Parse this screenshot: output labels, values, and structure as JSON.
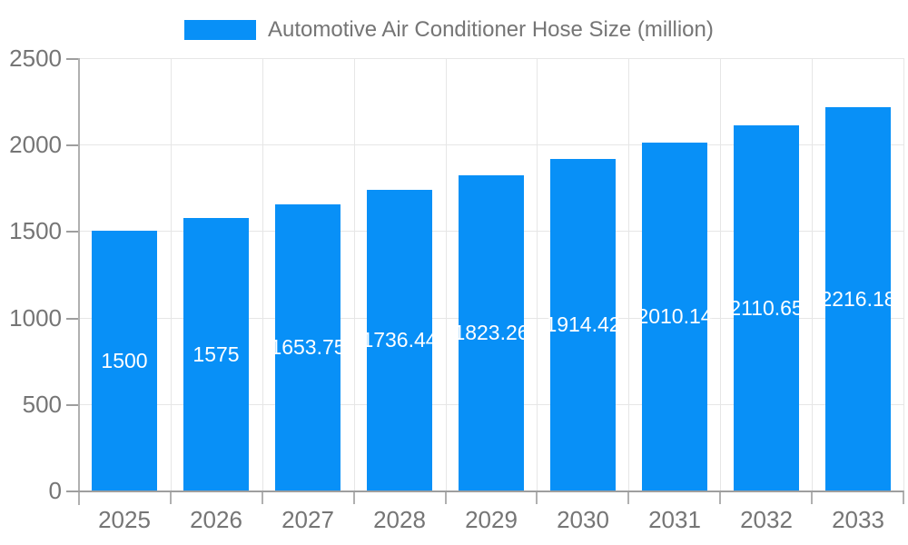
{
  "legend": {
    "label": "Automotive Air Conditioner Hose Size (million)"
  },
  "chart_data": {
    "type": "bar",
    "title": "Automotive Air Conditioner Hose Size (million)",
    "categories": [
      "2025",
      "2026",
      "2027",
      "2028",
      "2029",
      "2030",
      "2031",
      "2032",
      "2033"
    ],
    "values": [
      1500,
      1575,
      1653.75,
      1736.44,
      1823.26,
      1914.42,
      2010.14,
      2110.65,
      2216.18
    ],
    "value_labels": [
      "1500",
      "1575",
      "1653.75",
      "1736.44",
      "1823.26",
      "1914.42",
      "2010.14",
      "2110.65",
      "2216.18"
    ],
    "xlabel": "",
    "ylabel": "",
    "ylim": [
      0,
      2500
    ],
    "yticks": [
      0,
      500,
      1000,
      1500,
      2000,
      2500
    ],
    "grid": true,
    "legend_position": "top",
    "bar_color": "#0890f7",
    "bar_label_color": "#ffffff",
    "axis_text_color": "#757575",
    "grid_color": "#e6e6e6"
  }
}
